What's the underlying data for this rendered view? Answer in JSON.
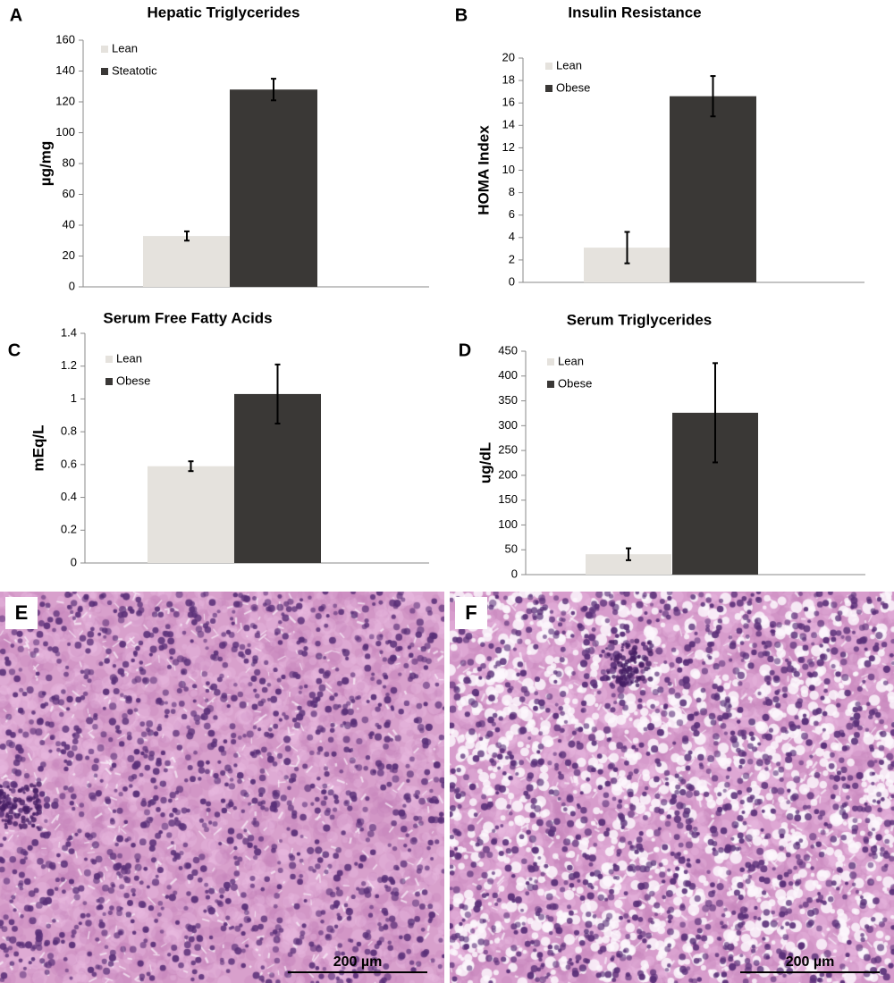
{
  "chart_data": [
    {
      "panel_label": "A",
      "type": "bar",
      "title": "Hepatic Triglycerides",
      "xlabel": "",
      "ylabel": "µg/mg",
      "ylim": [
        0,
        160
      ],
      "yticks": [
        0,
        20,
        40,
        60,
        80,
        100,
        120,
        140,
        160
      ],
      "legend_position": "top-left",
      "series": [
        {
          "name": "Lean",
          "value": 33,
          "error": 3,
          "color": "#e5e2dd"
        },
        {
          "name": "Steatotic",
          "value": 128,
          "error": 7,
          "color": "#3a3836"
        }
      ]
    },
    {
      "panel_label": "B",
      "type": "bar",
      "title": "Insulin Resistance",
      "xlabel": "",
      "ylabel": "HOMA Index",
      "ylim": [
        0,
        20
      ],
      "yticks": [
        0,
        2,
        4,
        6,
        8,
        10,
        12,
        14,
        16,
        18,
        20
      ],
      "legend_position": "top-left",
      "series": [
        {
          "name": "Lean",
          "value": 3.1,
          "error": 1.4,
          "color": "#e5e2dd"
        },
        {
          "name": "Obese",
          "value": 16.6,
          "error": 1.8,
          "color": "#3a3836"
        }
      ]
    },
    {
      "panel_label": "C",
      "type": "bar",
      "title": "Serum Free Fatty Acids",
      "xlabel": "",
      "ylabel": "mEq/L",
      "ylim": [
        0,
        1.4
      ],
      "yticks": [
        0,
        0.2,
        0.4,
        0.6,
        0.8,
        1,
        1.2,
        1.4
      ],
      "legend_position": "top-left",
      "series": [
        {
          "name": "Lean",
          "value": 0.59,
          "error": 0.03,
          "color": "#e5e2dd"
        },
        {
          "name": "Obese",
          "value": 1.03,
          "error": 0.18,
          "color": "#3a3836"
        }
      ]
    },
    {
      "panel_label": "D",
      "type": "bar",
      "title": "Serum Triglycerides",
      "xlabel": "",
      "ylabel": "ug/dL",
      "ylim": [
        0,
        450
      ],
      "yticks": [
        0,
        50,
        100,
        150,
        200,
        250,
        300,
        350,
        400,
        450
      ],
      "legend_position": "top-left",
      "series": [
        {
          "name": "Lean",
          "value": 41,
          "error": 12,
          "color": "#e5e2dd"
        },
        {
          "name": "Obese",
          "value": 326,
          "error": 100,
          "color": "#3a3836"
        }
      ]
    }
  ],
  "micrographs": [
    {
      "panel_label": "E",
      "scale_bar_label": "200 µm",
      "stain_color": "#d8a0cc",
      "nucleus_color": "#5a2f78",
      "fat_vacuoles": false
    },
    {
      "panel_label": "F",
      "scale_bar_label": "200 µm",
      "stain_color": "#d79ccc",
      "nucleus_color": "#5a2f78",
      "fat_vacuoles": true
    }
  ]
}
